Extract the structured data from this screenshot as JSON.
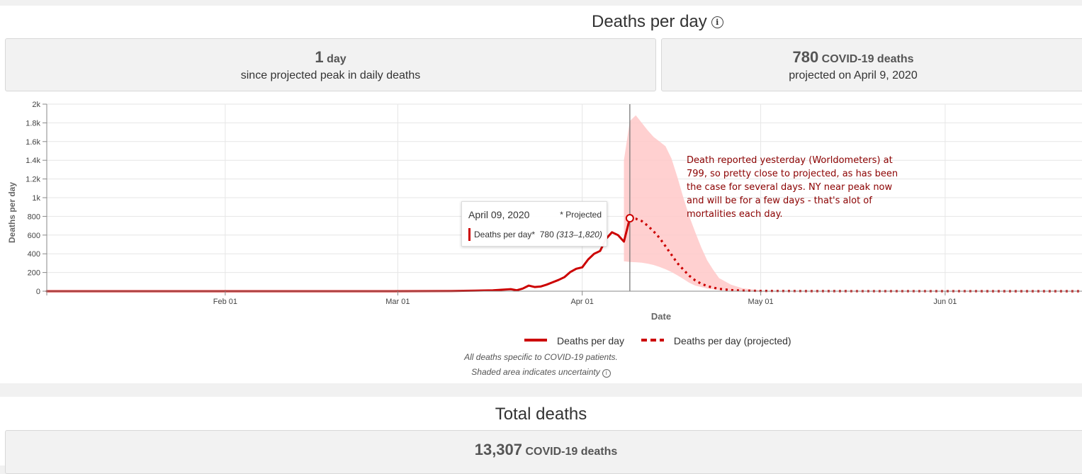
{
  "section1": {
    "title": "Deaths per day",
    "peak_stat": {
      "value": "1",
      "unit": "day",
      "subtitle": "since projected peak in daily deaths"
    },
    "projection_stat": {
      "value": "780",
      "unit": "COVID-19 deaths",
      "subtitle": "projected on April 9, 2020"
    },
    "tooltip": {
      "date": "April 09, 2020",
      "projected_flag": "* Projected",
      "series_label": "Deaths per day*",
      "value": "780",
      "range": "(313–1,820)"
    },
    "annotation": "Death reported yesterday (Worldometers) at 799, so pretty close to projected, as has been the case for several days.  NY near peak now and will be for a few days - that's alot of mortalities each day.",
    "footnote1": "All deaths specific to COVID-19 patients.",
    "footnote2": "Shaded area indicates uncertainty"
  },
  "section2": {
    "title": "Total deaths",
    "total_stat": {
      "value": "13,307",
      "unit": "COVID-19 deaths"
    }
  },
  "colors": {
    "series": "#cc0000",
    "band": "#ffc8c8"
  },
  "chart_data": {
    "type": "line",
    "xlabel": "Date",
    "ylabel": "Deaths per day",
    "x_ticks": [
      "Feb 01",
      "Mar 01",
      "Apr 01",
      "May 01",
      "Jun 01"
    ],
    "y_ticks": [
      "0",
      "200",
      "400",
      "600",
      "800",
      "1k",
      "1.2k",
      "1.4k",
      "1.6k",
      "1.8k",
      "2k"
    ],
    "ylim": [
      0,
      2000
    ],
    "xlim": [
      "2020-01-02",
      "2020-06-24"
    ],
    "grid": true,
    "legend": "bottom-center",
    "marker_date": "2020-04-09",
    "series": [
      {
        "name": "Deaths per day",
        "style": "solid",
        "points": [
          [
            "2020-01-02",
            0
          ],
          [
            "2020-02-29",
            0
          ],
          [
            "2020-03-10",
            2
          ],
          [
            "2020-03-14",
            5
          ],
          [
            "2020-03-17",
            10
          ],
          [
            "2020-03-20",
            22
          ],
          [
            "2020-03-21",
            10
          ],
          [
            "2020-03-22",
            28
          ],
          [
            "2020-03-23",
            60
          ],
          [
            "2020-03-24",
            45
          ],
          [
            "2020-03-25",
            50
          ],
          [
            "2020-03-26",
            70
          ],
          [
            "2020-03-27",
            95
          ],
          [
            "2020-03-28",
            120
          ],
          [
            "2020-03-29",
            150
          ],
          [
            "2020-03-30",
            205
          ],
          [
            "2020-03-31",
            240
          ],
          [
            "2020-04-01",
            255
          ],
          [
            "2020-04-02",
            340
          ],
          [
            "2020-04-03",
            400
          ],
          [
            "2020-04-04",
            430
          ],
          [
            "2020-04-05",
            560
          ],
          [
            "2020-04-06",
            630
          ],
          [
            "2020-04-07",
            600
          ],
          [
            "2020-04-08",
            530
          ],
          [
            "2020-04-09",
            780
          ]
        ]
      },
      {
        "name": "Deaths per day (projected)",
        "style": "dashed",
        "points": [
          [
            "2020-04-09",
            780
          ],
          [
            "2020-04-10",
            775
          ],
          [
            "2020-04-11",
            750
          ],
          [
            "2020-04-12",
            700
          ],
          [
            "2020-04-13",
            640
          ],
          [
            "2020-04-14",
            570
          ],
          [
            "2020-04-15",
            480
          ],
          [
            "2020-04-16",
            390
          ],
          [
            "2020-04-17",
            300
          ],
          [
            "2020-04-18",
            230
          ],
          [
            "2020-04-19",
            165
          ],
          [
            "2020-04-20",
            115
          ],
          [
            "2020-04-21",
            80
          ],
          [
            "2020-04-22",
            55
          ],
          [
            "2020-04-23",
            38
          ],
          [
            "2020-04-24",
            25
          ],
          [
            "2020-04-26",
            12
          ],
          [
            "2020-04-28",
            6
          ],
          [
            "2020-05-01",
            3
          ],
          [
            "2020-05-10",
            1
          ],
          [
            "2020-06-24",
            0
          ]
        ]
      }
    ],
    "uncertainty_band": {
      "upper": [
        [
          "2020-04-08",
          1400
        ],
        [
          "2020-04-09",
          1820
        ],
        [
          "2020-04-10",
          1880
        ],
        [
          "2020-04-11",
          1800
        ],
        [
          "2020-04-12",
          1720
        ],
        [
          "2020-04-13",
          1650
        ],
        [
          "2020-04-14",
          1600
        ],
        [
          "2020-04-15",
          1550
        ],
        [
          "2020-04-16",
          1420
        ],
        [
          "2020-04-17",
          1220
        ],
        [
          "2020-04-18",
          1000
        ],
        [
          "2020-04-19",
          800
        ],
        [
          "2020-04-20",
          630
        ],
        [
          "2020-04-21",
          470
        ],
        [
          "2020-04-22",
          330
        ],
        [
          "2020-04-23",
          230
        ],
        [
          "2020-04-24",
          140
        ],
        [
          "2020-04-26",
          70
        ],
        [
          "2020-04-28",
          30
        ],
        [
          "2020-05-01",
          10
        ]
      ],
      "lower": [
        [
          "2020-05-01",
          0
        ],
        [
          "2020-04-28",
          2
        ],
        [
          "2020-04-26",
          5
        ],
        [
          "2020-04-24",
          12
        ],
        [
          "2020-04-22",
          28
        ],
        [
          "2020-04-20",
          60
        ],
        [
          "2020-04-19",
          90
        ],
        [
          "2020-04-18",
          130
        ],
        [
          "2020-04-17",
          170
        ],
        [
          "2020-04-16",
          205
        ],
        [
          "2020-04-15",
          235
        ],
        [
          "2020-04-14",
          260
        ],
        [
          "2020-04-13",
          280
        ],
        [
          "2020-04-12",
          295
        ],
        [
          "2020-04-11",
          305
        ],
        [
          "2020-04-10",
          310
        ],
        [
          "2020-04-09",
          313
        ],
        [
          "2020-04-08",
          320
        ]
      ]
    }
  }
}
